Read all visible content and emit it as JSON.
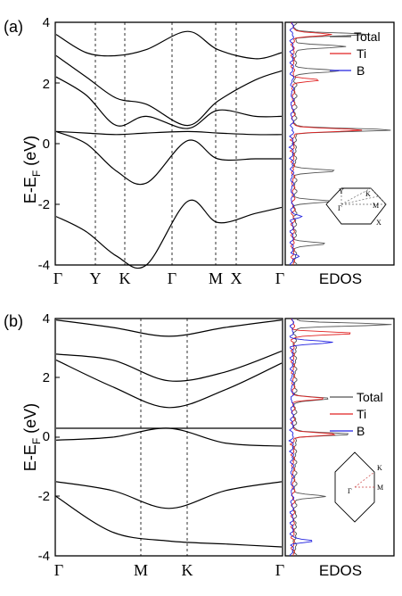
{
  "panels": [
    {
      "label": "(a)",
      "ylabel_main": "E-E",
      "ylabel_sub": "F",
      "ylabel_unit": " (eV)",
      "yticks": [
        "4",
        "2",
        "0",
        "-2",
        "-4"
      ],
      "ylim": [
        -4,
        4
      ],
      "kpoints": [
        "Γ",
        "Y",
        "K",
        "Γ",
        "M",
        "X",
        "Γ"
      ],
      "dos_xlabel": "EDOS",
      "legend": [
        {
          "name": "Total",
          "color": "#555555"
        },
        {
          "name": "Ti",
          "color": "#e02020"
        },
        {
          "name": "B",
          "color": "#2020e0"
        }
      ],
      "bz_labels": [
        "Y",
        "K",
        "M",
        "Γ",
        "X"
      ]
    },
    {
      "label": "(b)",
      "ylabel_main": "E-E",
      "ylabel_sub": "F",
      "ylabel_unit": " (eV)",
      "yticks": [
        "4",
        "2",
        "0",
        "-2",
        "-4"
      ],
      "ylim": [
        -4,
        4
      ],
      "kpoints": [
        "Γ",
        "M",
        "K",
        "Γ"
      ],
      "dos_xlabel": "EDOS",
      "legend": [
        {
          "name": "Total",
          "color": "#555555"
        },
        {
          "name": "Ti",
          "color": "#e02020"
        },
        {
          "name": "B",
          "color": "#2020e0"
        }
      ],
      "bz_labels": [
        "K",
        "M",
        "Γ"
      ]
    }
  ],
  "chart_data": [
    {
      "type": "line",
      "panel": "(a)",
      "ylabel": "E-EF (eV)",
      "ylim": [
        -4,
        4
      ],
      "x_ticks": [
        "Γ",
        "Y",
        "K",
        "Γ",
        "M",
        "X",
        "Γ"
      ],
      "x": [
        0,
        0.8,
        1.6,
        2.4,
        3.5,
        4.3,
        5.3,
        6.0
      ],
      "series": [
        {
          "values": [
            3.6,
            3.0,
            2.9,
            3.1,
            3.7,
            3.1,
            2.8,
            3.0
          ]
        },
        {
          "values": [
            2.9,
            2.2,
            1.5,
            1.3,
            0.6,
            1.4,
            2.1,
            2.4
          ]
        },
        {
          "values": [
            2.2,
            1.6,
            0.6,
            0.9,
            0.5,
            1.1,
            0.9,
            0.9
          ]
        },
        {
          "values": [
            0.4,
            0.35,
            0.3,
            0.35,
            0.4,
            0.35,
            0.3,
            0.3
          ]
        },
        {
          "values": [
            0.4,
            0.0,
            -0.9,
            -1.3,
            0.1,
            -0.5,
            -0.5,
            -0.5
          ]
        },
        {
          "values": [
            -2.4,
            -2.9,
            -3.7,
            -4.0,
            -1.9,
            -2.6,
            -2.3,
            -2.1
          ]
        }
      ],
      "dos": {
        "x_label": "EDOS",
        "series": [
          {
            "name": "Total",
            "peaks": [
              {
                "E": 0.45,
                "value": 0.95
              },
              {
                "E": 3.6,
                "value": 0.7
              },
              {
                "E": 3.2,
                "value": 0.5
              },
              {
                "E": 2.4,
                "value": 0.45
              },
              {
                "E": -0.9,
                "value": 0.4
              },
              {
                "E": -1.9,
                "value": 0.35
              },
              {
                "E": -3.3,
                "value": 0.3
              }
            ]
          },
          {
            "name": "Ti",
            "peaks": [
              {
                "E": 0.45,
                "value": 0.7
              },
              {
                "E": 3.6,
                "value": 0.4
              },
              {
                "E": 2.1,
                "value": 0.25
              }
            ]
          },
          {
            "name": "B",
            "peaks": [
              {
                "E": -2.4,
                "value": 0.08
              },
              {
                "E": -3.7,
                "value": 0.06
              }
            ]
          }
        ]
      }
    },
    {
      "type": "line",
      "panel": "(b)",
      "ylabel": "E-EF (eV)",
      "ylim": [
        -4,
        4
      ],
      "x_ticks": [
        "Γ",
        "M",
        "K",
        "Γ"
      ],
      "x": [
        0,
        1.0,
        2.0,
        3.0,
        4.0
      ],
      "series": [
        {
          "values": [
            3.95,
            3.7,
            3.4,
            3.7,
            3.95
          ]
        },
        {
          "values": [
            2.8,
            2.6,
            1.9,
            2.2,
            2.9
          ]
        },
        {
          "values": [
            2.6,
            1.7,
            1.0,
            1.6,
            2.5
          ]
        },
        {
          "values": [
            0.3,
            0.3,
            0.3,
            0.3,
            0.3
          ]
        },
        {
          "values": [
            -0.1,
            0.0,
            0.3,
            -0.2,
            -0.3
          ]
        },
        {
          "values": [
            -1.5,
            -1.8,
            -2.4,
            -1.8,
            -1.5
          ]
        },
        {
          "values": [
            -2.0,
            -3.2,
            -3.5,
            -3.6,
            -3.7
          ]
        }
      ],
      "dos": {
        "x_label": "EDOS",
        "series": [
          {
            "name": "Total",
            "peaks": [
              {
                "E": 3.8,
                "value": 0.95
              },
              {
                "E": 0.1,
                "value": 0.55
              },
              {
                "E": 1.3,
                "value": 0.35
              },
              {
                "E": -2.0,
                "value": 0.3
              }
            ]
          },
          {
            "name": "Ti",
            "peaks": [
              {
                "E": 3.5,
                "value": 0.6
              },
              {
                "E": 0.1,
                "value": 0.45
              },
              {
                "E": 1.3,
                "value": 0.3
              }
            ]
          },
          {
            "name": "B",
            "peaks": [
              {
                "E": 3.2,
                "value": 0.4
              },
              {
                "E": -3.5,
                "value": 0.2
              }
            ]
          }
        ]
      }
    }
  ]
}
